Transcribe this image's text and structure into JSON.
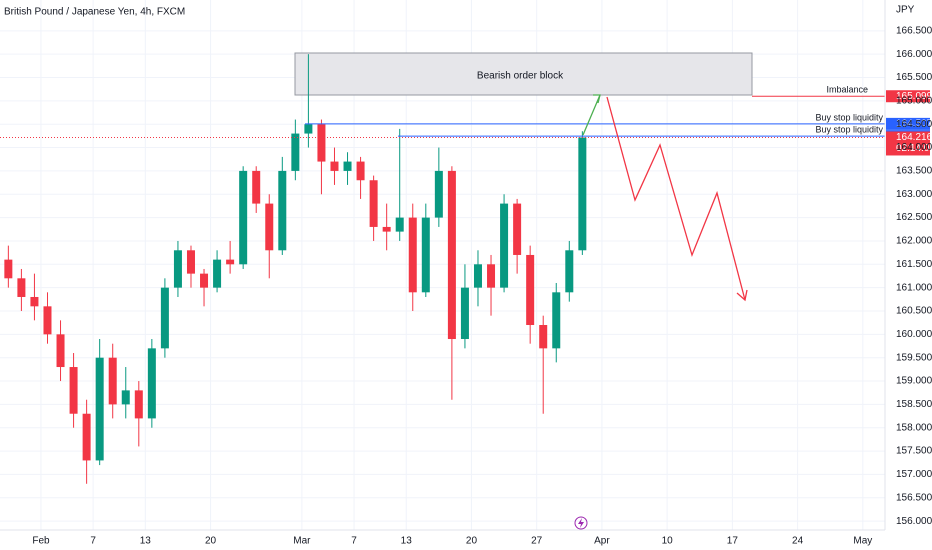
{
  "chart_data": {
    "type": "candlestick",
    "title": "British Pound / Japanese Yen, 4h, FXCM",
    "currency": "JPY",
    "up_color": "#089981",
    "down_color": "#f23645",
    "grid": true,
    "x": [
      -3,
      -2,
      -1,
      0,
      1,
      2,
      3,
      4,
      5,
      6,
      7,
      8,
      9,
      10,
      11,
      12,
      13,
      14,
      15,
      16,
      17,
      18,
      19,
      20,
      21,
      22,
      23,
      24,
      25,
      26,
      27,
      28,
      29,
      30,
      31,
      32,
      33,
      34,
      35,
      36,
      37,
      38,
      39,
      40,
      41
    ],
    "open": [
      161.6,
      161.2,
      160.8,
      160.6,
      160.0,
      159.3,
      158.3,
      157.3,
      159.5,
      158.5,
      158.8,
      158.2,
      159.7,
      161.0,
      161.8,
      161.3,
      161.0,
      161.6,
      161.5,
      163.5,
      162.8,
      161.8,
      163.5,
      164.3,
      164.5,
      163.7,
      163.5,
      163.7,
      163.3,
      162.3,
      162.2,
      162.5,
      160.9,
      162.5,
      163.5,
      159.9,
      161.0,
      161.5,
      161.0,
      162.8,
      161.7,
      160.2,
      159.7,
      160.9,
      161.8
    ],
    "high": [
      161.9,
      161.4,
      161.3,
      160.9,
      160.3,
      159.6,
      158.6,
      159.9,
      159.8,
      159.3,
      159.0,
      159.9,
      161.2,
      162.0,
      161.9,
      161.4,
      161.8,
      162.0,
      163.6,
      163.6,
      163.0,
      163.8,
      164.6,
      166.0,
      164.6,
      164.0,
      163.9,
      163.8,
      163.4,
      162.8,
      164.4,
      162.8,
      162.8,
      164.0,
      163.6,
      161.5,
      161.8,
      161.7,
      163.0,
      162.9,
      161.9,
      160.4,
      161.1,
      162.0,
      164.35
    ],
    "low": [
      161.0,
      160.5,
      160.3,
      159.8,
      159.0,
      158.0,
      156.8,
      157.2,
      158.2,
      158.2,
      157.6,
      158.0,
      159.5,
      160.8,
      161.0,
      160.6,
      160.9,
      161.3,
      161.4,
      162.6,
      161.2,
      161.7,
      163.3,
      164.0,
      163.0,
      163.2,
      163.2,
      162.9,
      162.0,
      161.8,
      162.0,
      160.5,
      160.8,
      162.3,
      158.6,
      159.7,
      160.6,
      160.4,
      160.9,
      161.3,
      159.8,
      158.3,
      159.4,
      160.7,
      161.7
    ],
    "close": [
      161.2,
      160.8,
      160.6,
      160.0,
      159.3,
      158.3,
      157.3,
      159.5,
      158.5,
      158.8,
      158.2,
      159.7,
      161.0,
      161.8,
      161.3,
      161.0,
      161.6,
      161.5,
      163.5,
      162.8,
      161.8,
      163.5,
      164.3,
      164.5,
      163.7,
      163.5,
      163.7,
      163.3,
      162.3,
      162.2,
      162.5,
      160.9,
      162.5,
      163.5,
      159.9,
      161.0,
      161.5,
      161.0,
      162.8,
      161.7,
      160.2,
      159.7,
      160.9,
      161.8,
      164.216
    ],
    "xlim": [
      -3.14,
      64.7
    ],
    "xticks": [
      {
        "value": 0,
        "label": "Feb"
      },
      {
        "value": 4,
        "label": "7"
      },
      {
        "value": 8,
        "label": "13"
      },
      {
        "value": 13,
        "label": "20"
      },
      {
        "value": 20,
        "label": "Mar"
      },
      {
        "value": 24,
        "label": "7"
      },
      {
        "value": 28,
        "label": "13"
      },
      {
        "value": 33,
        "label": "20"
      },
      {
        "value": 38,
        "label": "27"
      },
      {
        "value": 43,
        "label": "Apr"
      },
      {
        "value": 48,
        "label": "10"
      },
      {
        "value": 53,
        "label": "17"
      },
      {
        "value": 58,
        "label": "24"
      },
      {
        "value": 63,
        "label": "May"
      }
    ],
    "ylim": [
      155.81,
      167.16
    ],
    "yticks": [
      {
        "value": 156,
        "label": "156.000"
      },
      {
        "value": 156.5,
        "label": "156.500"
      },
      {
        "value": 157,
        "label": "157.000"
      },
      {
        "value": 157.5,
        "label": "157.500"
      },
      {
        "value": 158,
        "label": "158.000"
      },
      {
        "value": 158.5,
        "label": "158.500"
      },
      {
        "value": 159,
        "label": "159.000"
      },
      {
        "value": 159.5,
        "label": "159.500"
      },
      {
        "value": 160,
        "label": "160.000"
      },
      {
        "value": 160.5,
        "label": "160.500"
      },
      {
        "value": 161,
        "label": "161.000"
      },
      {
        "value": 161.5,
        "label": "161.500"
      },
      {
        "value": 162,
        "label": "162.000"
      },
      {
        "value": 162.5,
        "label": "162.500"
      },
      {
        "value": 163,
        "label": "163.000"
      },
      {
        "value": 163.5,
        "label": "163.500"
      },
      {
        "value": 164,
        "label": "164.000"
      },
      {
        "value": 164.5,
        "label": "164.500"
      },
      {
        "value": 165,
        "label": "165.000"
      },
      {
        "value": 165.5,
        "label": "165.500"
      },
      {
        "value": 166,
        "label": "166.000"
      },
      {
        "value": 166.5,
        "label": "166.500"
      }
    ],
    "order_block_label": "Bearish order block",
    "levels": [
      {
        "name": "Imbalance",
        "value": 165.099,
        "color": "#f23645"
      },
      {
        "name": "Buy stop liquidity",
        "value": 164.507,
        "color": "#2962ff"
      },
      {
        "name": "Buy stop liquidity",
        "value": 164.245,
        "color": "#2962ff"
      }
    ],
    "last_price": 164.216,
    "countdown": "02:14:04"
  }
}
